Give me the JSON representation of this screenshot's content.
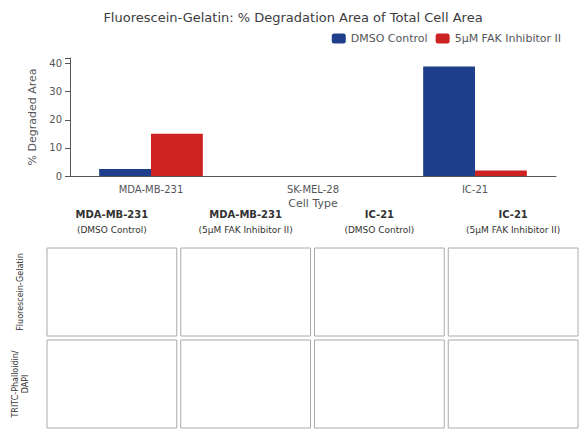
{
  "chart_data": {
    "type": "bar",
    "title": "Fluorescein-Gelatin: % Degradation Area of Total Cell Area",
    "categories": [
      "MDA-MB-231",
      "SK-MEL-28",
      "IC-21"
    ],
    "series": [
      {
        "name": "DMSO Control",
        "color": "#1F3E8C",
        "values": [
          2.5,
          0.0,
          39.0
        ]
      },
      {
        "name": "5μM FAK Inhibitor II",
        "color": "#CC2222",
        "values": [
          15.0,
          0.0,
          2.0
        ]
      }
    ],
    "xlabel": "Cell Type",
    "ylabel": "% Degraded Area",
    "ylim": [
      0,
      42
    ],
    "yticks": [
      0,
      10,
      20,
      30,
      40
    ],
    "grid": false,
    "legend": "upper right",
    "annotations": {
      "col_headers": [
        "MDA-MB-231",
        "MDA-MB-231",
        "IC-21",
        "IC-21"
      ],
      "col_subheaders": [
        "(DMSO Control)",
        "(5μM FAK Inhibitor II)",
        "(DMSO Control)",
        "(5μM FAK Inhibitor II)"
      ],
      "row_labels": [
        "Fluorescein-Gelatin",
        "TRITC-Phalloidin/\nDAPI"
      ]
    }
  }
}
